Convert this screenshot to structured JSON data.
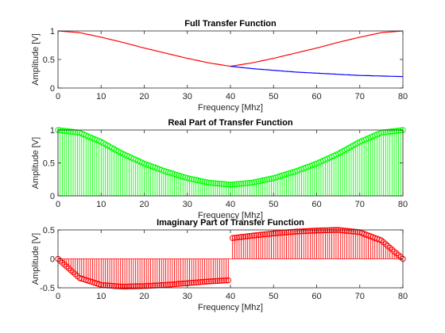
{
  "chart_data": [
    {
      "type": "line",
      "title": "Full Transfer Function",
      "xlabel": "Frequency [Mhz]",
      "ylabel": "Amplitude [V]",
      "xlim": [
        0,
        80
      ],
      "ylim": [
        0,
        1
      ],
      "xticks": [
        "0",
        "10",
        "20",
        "30",
        "40",
        "50",
        "60",
        "70",
        "80"
      ],
      "yticks": [
        "0",
        "0.5",
        "1"
      ],
      "grid": false,
      "series": [
        {
          "color": "#ff0000",
          "x": [
            0,
            5,
            10,
            15,
            20,
            25,
            30,
            35,
            40,
            45,
            50,
            55,
            60,
            65,
            70,
            75,
            80
          ],
          "y": [
            1.0,
            0.97,
            0.89,
            0.8,
            0.7,
            0.61,
            0.52,
            0.44,
            0.38,
            0.44,
            0.52,
            0.61,
            0.7,
            0.8,
            0.89,
            0.97,
            1.0
          ]
        },
        {
          "color": "#0000ff",
          "x": [
            40,
            45,
            50,
            55,
            60,
            65,
            70,
            75,
            80
          ],
          "y": [
            0.38,
            0.34,
            0.31,
            0.28,
            0.26,
            0.24,
            0.22,
            0.21,
            0.2
          ]
        }
      ]
    },
    {
      "type": "stem",
      "title": "Real Part of Transfer Function",
      "xlabel": "Frequency [Mhz]",
      "ylabel": "Amplitude [V]",
      "xlim": [
        0,
        80
      ],
      "ylim": [
        0,
        1
      ],
      "xticks": [
        "0",
        "10",
        "20",
        "30",
        "40",
        "50",
        "60",
        "70",
        "80"
      ],
      "yticks": [
        "0",
        "0.5",
        "1"
      ],
      "grid": false,
      "marker": "circle",
      "color": "#00ff00",
      "x": [
        0,
        5,
        10,
        15,
        20,
        25,
        30,
        35,
        40,
        45,
        50,
        55,
        60,
        65,
        70,
        75,
        80
      ],
      "y": [
        1.0,
        0.96,
        0.82,
        0.64,
        0.49,
        0.37,
        0.27,
        0.2,
        0.17,
        0.2,
        0.27,
        0.37,
        0.49,
        0.64,
        0.82,
        0.96,
        1.0
      ]
    },
    {
      "type": "stem",
      "title": "Imaginary Part of Transfer Function",
      "xlabel": "Frequency [Mhz]",
      "ylabel": "Amplitude [V]",
      "xlim": [
        0,
        80
      ],
      "ylim": [
        -0.5,
        0.5
      ],
      "xticks": [
        "0",
        "10",
        "20",
        "30",
        "40",
        "50",
        "60",
        "70",
        "80"
      ],
      "yticks": [
        "-0.5",
        "0",
        "0.5"
      ],
      "grid": false,
      "marker": "circle",
      "color": "#ff0000",
      "x": [
        0,
        5,
        10,
        15,
        20,
        25,
        30,
        35,
        39.5,
        40.5,
        45,
        50,
        55,
        60,
        65,
        70,
        75,
        80
      ],
      "y": [
        0,
        -0.33,
        -0.45,
        -0.48,
        -0.47,
        -0.45,
        -0.42,
        -0.39,
        -0.37,
        0.36,
        0.4,
        0.44,
        0.47,
        0.49,
        0.5,
        0.46,
        0.32,
        0
      ]
    }
  ]
}
